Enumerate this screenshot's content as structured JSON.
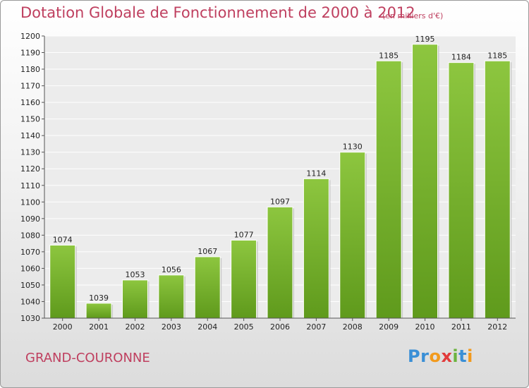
{
  "chart_data": {
    "type": "bar",
    "title": "Dotation Globale de Fonctionnement de 2000 à 2012",
    "subtitle": "(en milliers d'€)",
    "categories": [
      "2000",
      "2001",
      "2002",
      "2003",
      "2004",
      "2005",
      "2006",
      "2007",
      "2008",
      "2009",
      "2010",
      "2011",
      "2012"
    ],
    "values": [
      1074,
      1039,
      1053,
      1056,
      1067,
      1077,
      1097,
      1114,
      1130,
      1185,
      1195,
      1184,
      1185
    ],
    "ylim": [
      1030,
      1200
    ],
    "yticks": [
      1030,
      1040,
      1050,
      1060,
      1070,
      1080,
      1090,
      1100,
      1110,
      1120,
      1130,
      1140,
      1150,
      1160,
      1170,
      1180,
      1190,
      1200
    ],
    "grid": true,
    "bar_color": "#8dc63f",
    "bar_color_dark": "#5f9a1c",
    "text_color": "#bf3f5f"
  },
  "location": "GRAND-COURONNE",
  "logo": {
    "letters": [
      "P",
      "r",
      "o",
      "x",
      "i",
      "t",
      "i"
    ],
    "colors": [
      "#3a8fd6",
      "#3a8fd6",
      "#f29a1d",
      "#e23b3b",
      "#6cb33e",
      "#3a8fd6",
      "#f29a1d"
    ]
  }
}
